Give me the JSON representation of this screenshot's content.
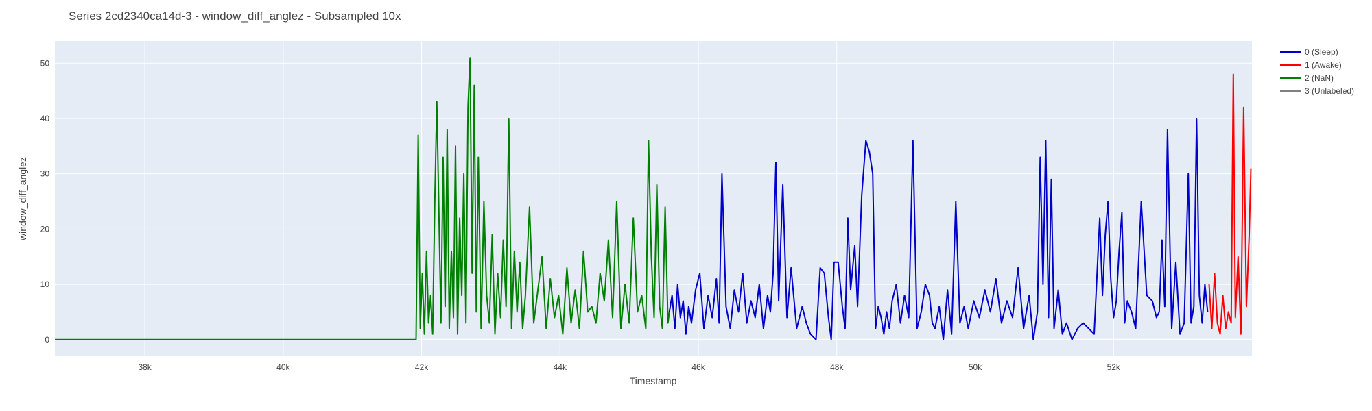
{
  "chart_data": {
    "type": "line",
    "title": "Series 2cd2340ca14d-3 - window_diff_anglez - Subsampled 10x",
    "xlabel": "Timestamp",
    "ylabel": "window_diff_anglez",
    "xlim": [
      36700,
      54000
    ],
    "ylim": [
      -3,
      54
    ],
    "x_ticks": [
      38000,
      40000,
      42000,
      44000,
      46000,
      48000,
      50000,
      52000
    ],
    "x_tick_labels": [
      "38k",
      "40k",
      "42k",
      "44k",
      "46k",
      "48k",
      "50k",
      "52k"
    ],
    "y_ticks": [
      0,
      10,
      20,
      30,
      40,
      50
    ],
    "y_tick_labels": [
      "0",
      "10",
      "20",
      "30",
      "40",
      "50"
    ],
    "grid": true,
    "legend_position": "right",
    "series": [
      {
        "name": "0 (Sleep)",
        "color": "#0000cc",
        "x": [
          45580,
          45620,
          45660,
          45700,
          45740,
          45780,
          45820,
          45860,
          45900,
          45960,
          46020,
          46080,
          46140,
          46200,
          46260,
          46300,
          46340,
          46400,
          46460,
          46520,
          46580,
          46640,
          46700,
          46760,
          46820,
          46880,
          46940,
          47000,
          47040,
          47080,
          47120,
          47160,
          47220,
          47280,
          47340,
          47420,
          47500,
          47560,
          47620,
          47700,
          47760,
          47820,
          47880,
          47920,
          47960,
          48020,
          48080,
          48120,
          48160,
          48200,
          48260,
          48300,
          48360,
          48420,
          48470,
          48520,
          48560,
          48600,
          48640,
          48680,
          48720,
          48760,
          48800,
          48860,
          48920,
          48980,
          49040,
          49100,
          49160,
          49220,
          49280,
          49340,
          49380,
          49420,
          49480,
          49540,
          49600,
          49660,
          49720,
          49780,
          49840,
          49900,
          49980,
          50060,
          50140,
          50220,
          50300,
          50380,
          50460,
          50540,
          50620,
          50700,
          50780,
          50840,
          50900,
          50940,
          50980,
          51020,
          51060,
          51100,
          51140,
          51200,
          51260,
          51320,
          51400,
          51480,
          51560,
          51640,
          51720,
          51800,
          51840,
          51880,
          51920,
          51960,
          52000,
          52040,
          52080,
          52120,
          52160,
          52200,
          52260,
          52320,
          52400,
          52480,
          52560,
          52620,
          52660,
          52700,
          52740,
          52780,
          52840,
          52900,
          52960,
          53020,
          53080,
          53120,
          53160,
          53200,
          53240,
          53280,
          53320,
          53360
        ],
        "y": [
          5,
          8,
          2,
          10,
          4,
          7,
          1,
          6,
          3,
          9,
          12,
          2,
          8,
          4,
          11,
          3,
          30,
          6,
          2,
          9,
          5,
          12,
          3,
          7,
          4,
          10,
          2,
          8,
          5,
          12,
          32,
          7,
          28,
          4,
          13,
          2,
          6,
          3,
          1,
          0,
          13,
          12,
          4,
          0,
          14,
          14,
          6,
          2,
          22,
          9,
          17,
          6,
          26,
          36,
          34,
          30,
          2,
          6,
          4,
          1,
          5,
          2,
          7,
          10,
          3,
          8,
          4,
          36,
          2,
          5,
          10,
          8,
          3,
          2,
          6,
          0,
          9,
          1,
          25,
          3,
          6,
          2,
          7,
          4,
          9,
          5,
          11,
          3,
          7,
          4,
          13,
          2,
          8,
          0,
          5,
          33,
          10,
          36,
          4,
          29,
          2,
          9,
          1,
          3,
          0,
          2,
          3,
          2,
          1,
          22,
          8,
          19,
          25,
          11,
          4,
          7,
          16,
          23,
          3,
          7,
          5,
          2,
          25,
          8,
          7,
          4,
          5,
          18,
          6,
          38,
          2,
          14,
          1,
          3,
          30,
          3,
          6,
          40,
          8,
          3,
          10,
          5
        ]
      },
      {
        "name": "1 (Awake)",
        "color": "#ff0000",
        "x": [
          53380,
          53420,
          53460,
          53500,
          53540,
          53580,
          53620,
          53660,
          53700,
          53730,
          53760,
          53800,
          53840,
          53880,
          53920,
          53960,
          53985
        ],
        "y": [
          10,
          2,
          12,
          3,
          1,
          8,
          2,
          5,
          3,
          48,
          4,
          15,
          1,
          42,
          6,
          19,
          31
        ]
      },
      {
        "name": "2 (NaN)",
        "color": "#008000",
        "x": [
          36700,
          41920,
          41950,
          41980,
          42010,
          42040,
          42070,
          42100,
          42130,
          42160,
          42190,
          42220,
          42250,
          42280,
          42310,
          42340,
          42370,
          42400,
          42430,
          42460,
          42490,
          42520,
          42550,
          42580,
          42610,
          42640,
          42670,
          42700,
          42730,
          42760,
          42790,
          42820,
          42860,
          42900,
          42940,
          42980,
          43020,
          43060,
          43100,
          43140,
          43180,
          43220,
          43260,
          43300,
          43340,
          43380,
          43420,
          43460,
          43500,
          43560,
          43620,
          43680,
          43740,
          43800,
          43860,
          43920,
          43980,
          44040,
          44100,
          44160,
          44220,
          44280,
          44340,
          44400,
          44460,
          44520,
          44580,
          44640,
          44700,
          44760,
          44820,
          44880,
          44940,
          45000,
          45060,
          45120,
          45180,
          45240,
          45280,
          45320,
          45360,
          45400,
          45440,
          45480,
          45520,
          45560,
          45580
        ],
        "y": [
          0,
          0,
          37,
          2,
          12,
          1,
          16,
          3,
          8,
          1,
          25,
          43,
          23,
          3,
          33,
          6,
          38,
          2,
          16,
          4,
          35,
          1,
          22,
          8,
          30,
          3,
          42,
          51,
          12,
          46,
          5,
          33,
          2,
          25,
          8,
          3,
          19,
          1,
          12,
          4,
          18,
          6,
          40,
          2,
          16,
          5,
          14,
          2,
          8,
          24,
          3,
          9,
          15,
          2,
          11,
          4,
          8,
          1,
          13,
          3,
          9,
          2,
          16,
          5,
          6,
          3,
          12,
          7,
          18,
          4,
          25,
          2,
          10,
          3,
          22,
          5,
          8,
          2,
          36,
          15,
          4,
          28,
          6,
          2,
          24,
          3,
          5
        ]
      },
      {
        "name": "3 (Unlabeled)",
        "color": "#808080",
        "x": [],
        "y": []
      }
    ]
  }
}
